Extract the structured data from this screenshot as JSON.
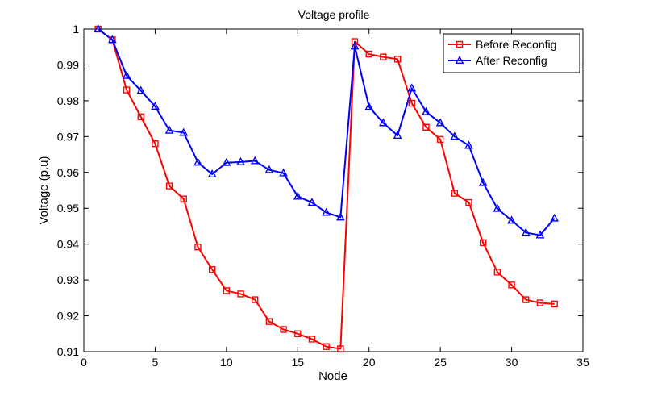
{
  "chart_data": {
    "type": "line",
    "title": "Voltage profile",
    "xlabel": "Node",
    "ylabel": "Voltage (p.u)",
    "xlim": [
      0,
      35
    ],
    "ylim": [
      0.91,
      1.0
    ],
    "xticks": [
      0,
      5,
      10,
      15,
      20,
      25,
      30,
      35
    ],
    "yticks": [
      0.91,
      0.92,
      0.93,
      0.94,
      0.95,
      0.96,
      0.97,
      0.98,
      0.99,
      1
    ],
    "xtick_labels": [
      "0",
      "5",
      "10",
      "15",
      "20",
      "25",
      "30",
      "35"
    ],
    "ytick_labels": [
      "0.91",
      "0.92",
      "0.93",
      "0.94",
      "0.95",
      "0.96",
      "0.97",
      "0.98",
      "0.99",
      "1"
    ],
    "grid": false,
    "legend_position": "top-right",
    "x": [
      1,
      2,
      3,
      4,
      5,
      6,
      7,
      8,
      9,
      10,
      11,
      12,
      13,
      14,
      15,
      16,
      17,
      18,
      19,
      20,
      21,
      22,
      23,
      24,
      25,
      26,
      27,
      28,
      29,
      30,
      31,
      32,
      33
    ],
    "series": [
      {
        "name": "Before Reconfig",
        "color": "#ff0000",
        "marker": "square",
        "values": [
          1.0,
          0.997,
          0.983,
          0.9755,
          0.968,
          0.9562,
          0.9526,
          0.9392,
          0.9329,
          0.927,
          0.9261,
          0.9245,
          0.9184,
          0.9162,
          0.915,
          0.9135,
          0.9114,
          0.9108,
          0.9965,
          0.993,
          0.9922,
          0.9916,
          0.9793,
          0.9726,
          0.9692,
          0.9542,
          0.9516,
          0.9404,
          0.9322,
          0.9286,
          0.9245,
          0.9236,
          0.9233
        ]
      },
      {
        "name": "After Reconfig",
        "color": "#0000ff",
        "marker": "triangle",
        "values": [
          1.0,
          0.997,
          0.987,
          0.9828,
          0.9784,
          0.9717,
          0.9711,
          0.9628,
          0.9595,
          0.9627,
          0.9629,
          0.9632,
          0.9607,
          0.9598,
          0.9533,
          0.9516,
          0.9488,
          0.9475,
          0.9952,
          0.9783,
          0.9738,
          0.9703,
          0.9835,
          0.9769,
          0.9738,
          0.97,
          0.9675,
          0.9571,
          0.9499,
          0.9466,
          0.9432,
          0.9425,
          0.9472
        ]
      }
    ]
  }
}
